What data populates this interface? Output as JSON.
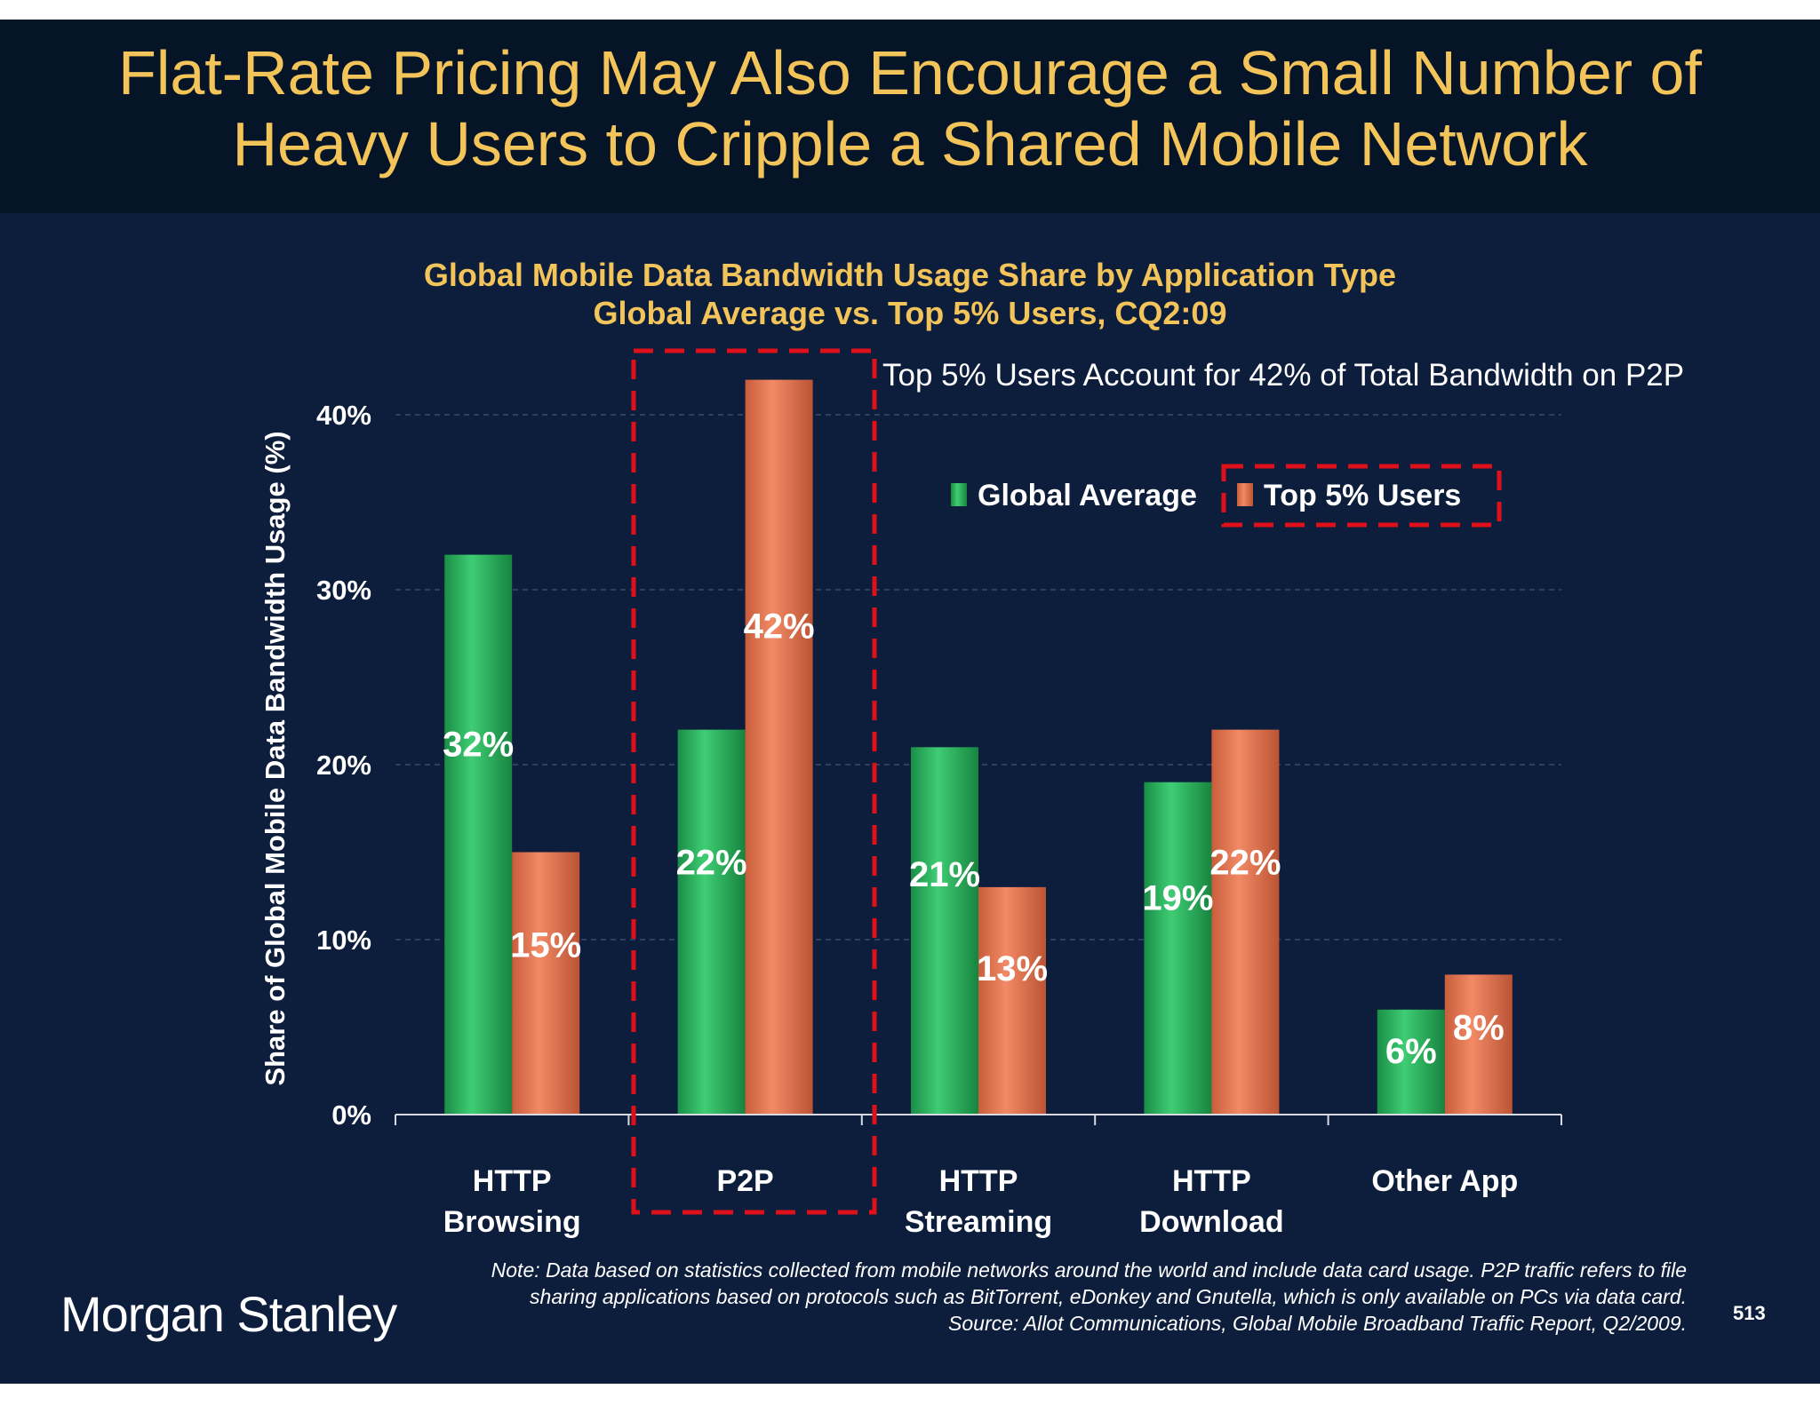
{
  "slide": {
    "title": "Flat-Rate Pricing May Also Encourage a Small Number of Heavy Users to Cripple a Shared Mobile Network",
    "note_lines": [
      "Note: Data based on statistics collected from mobile networks around the world and include data card usage. P2P traffic refers to file",
      "sharing applications based on protocols such as BitTorrent, eDonkey and Gnutella, which is only available on PCs via data card.",
      "Source: Allot Communications, Global Mobile Broadband Traffic Report, Q2/2009."
    ],
    "logo": "Morgan Stanley",
    "page_number": "513",
    "colors": {
      "background": "#0d1d3c",
      "title_band": "#061428",
      "title_text": "#f2c45a",
      "highlight_box": "#e0101a"
    }
  },
  "chart_data": {
    "type": "bar",
    "title": "Global Mobile Data Bandwidth Usage Share by Application Type",
    "subtitle": "Global Average vs. Top 5% Users, CQ2:09",
    "ylabel": "Share of Global Mobile Data Bandwidth Usage (%)",
    "xlabel": "",
    "categories": [
      [
        "HTTP",
        "Browsing"
      ],
      [
        "P2P"
      ],
      [
        "HTTP",
        "Streaming"
      ],
      [
        "HTTP",
        "Download"
      ],
      [
        "Other App"
      ]
    ],
    "series": [
      {
        "name": "Global Average",
        "values": [
          32,
          22,
          21,
          19,
          6
        ],
        "labels": [
          "32%",
          "22%",
          "21%",
          "19%",
          "6%"
        ],
        "color": "#2fb860"
      },
      {
        "name": "Top 5% Users",
        "values": [
          15,
          42,
          13,
          22,
          8
        ],
        "labels": [
          "15%",
          "42%",
          "13%",
          "22%",
          "8%"
        ],
        "color": "#e87855"
      }
    ],
    "ylim": [
      0,
      40
    ],
    "yticks": [
      0,
      10,
      20,
      30,
      40
    ],
    "ytick_labels": [
      "0%",
      "10%",
      "20%",
      "30%",
      "40%"
    ],
    "grid": true,
    "legend": "top-right",
    "annotation": "Top 5% Users Account for 42% of Total Bandwidth on P2P",
    "highlighted_category": "P2P",
    "highlighted_series": "Top 5% Users"
  }
}
